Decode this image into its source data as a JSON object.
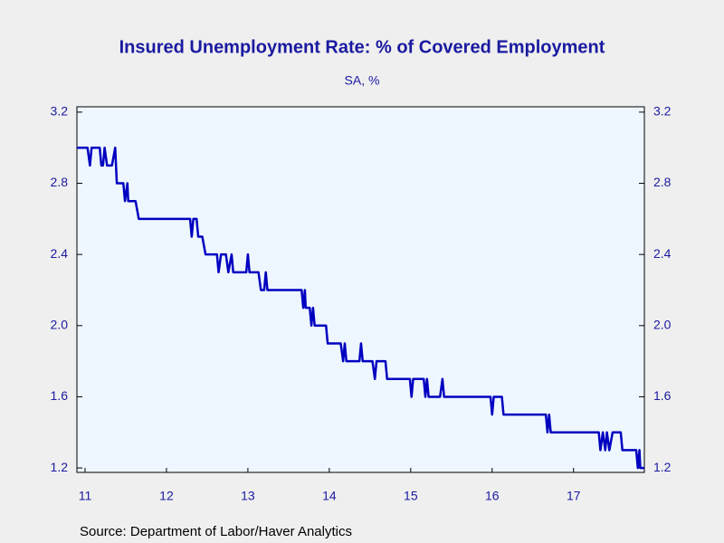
{
  "chart_data": {
    "type": "line",
    "title": "Insured Unemployment Rate: % of Covered Employment",
    "subtitle": "SA, %",
    "source": "Source:  Department of Labor/Haver Analytics",
    "x": [
      2011.4,
      2011.53,
      2011.56,
      2011.58,
      2011.68,
      2011.7,
      2011.72,
      2011.74,
      2011.77,
      2011.83,
      2011.87,
      2011.89,
      2011.97,
      2011.99,
      2012.02,
      2012.03,
      2012.12,
      2012.16,
      2012.79,
      2012.81,
      2012.83,
      2012.87,
      2012.89,
      2012.94,
      2012.98,
      2013.12,
      2013.14,
      2013.17,
      2013.23,
      2013.26,
      2013.3,
      2013.32,
      2013.48,
      2013.5,
      2013.52,
      2013.63,
      2013.66,
      2013.7,
      2013.72,
      2013.74,
      2014.16,
      2014.18,
      2014.2,
      2014.21,
      2014.26,
      2014.28,
      2014.3,
      2014.32,
      2014.46,
      2014.48,
      2014.64,
      2014.67,
      2014.69,
      2014.71,
      2014.87,
      2014.89,
      2014.91,
      2015.03,
      2015.06,
      2015.08,
      2015.19,
      2015.21,
      2015.49,
      2015.51,
      2015.53,
      2015.66,
      2015.68,
      2015.7,
      2015.72,
      2015.86,
      2015.89,
      2015.91,
      2016.48,
      2016.5,
      2016.52,
      2016.62,
      2016.64,
      2017.16,
      2017.18,
      2017.2,
      2017.22,
      2017.81,
      2017.83,
      2017.86,
      2017.89,
      2017.91,
      2017.94,
      2017.98,
      2018.08,
      2018.1,
      2018.27,
      2018.29,
      2018.31,
      2018.32,
      2018.37
    ],
    "series": [
      {
        "color": "#0000c0",
        "values": [
          3.0,
          3.0,
          2.9,
          3.0,
          3.0,
          2.9,
          2.9,
          3.0,
          2.9,
          2.9,
          3.0,
          2.8,
          2.8,
          2.7,
          2.8,
          2.7,
          2.7,
          2.6,
          2.6,
          2.5,
          2.6,
          2.6,
          2.5,
          2.5,
          2.4,
          2.4,
          2.3,
          2.4,
          2.4,
          2.3,
          2.4,
          2.3,
          2.3,
          2.4,
          2.3,
          2.3,
          2.2,
          2.2,
          2.3,
          2.2,
          2.2,
          2.1,
          2.2,
          2.1,
          2.1,
          2.0,
          2.1,
          2.0,
          2.0,
          1.9,
          1.9,
          1.8,
          1.9,
          1.8,
          1.8,
          1.9,
          1.8,
          1.8,
          1.7,
          1.8,
          1.8,
          1.7,
          1.7,
          1.6,
          1.7,
          1.7,
          1.6,
          1.7,
          1.6,
          1.6,
          1.7,
          1.6,
          1.6,
          1.5,
          1.6,
          1.6,
          1.5,
          1.5,
          1.4,
          1.5,
          1.4,
          1.4,
          1.3,
          1.4,
          1.3,
          1.4,
          1.3,
          1.4,
          1.4,
          1.3,
          1.3,
          1.2,
          1.3,
          1.2,
          1.2
        ]
      }
    ],
    "xlim": [
      2011.4,
      2018.37
    ],
    "xticks": [
      {
        "value": 2011.5,
        "label": "11"
      },
      {
        "value": 2012.5,
        "label": "12"
      },
      {
        "value": 2013.5,
        "label": "13"
      },
      {
        "value": 2014.5,
        "label": "14"
      },
      {
        "value": 2015.5,
        "label": "15"
      },
      {
        "value": 2016.5,
        "label": "16"
      },
      {
        "value": 2017.5,
        "label": "17"
      }
    ],
    "ylim": [
      1.175,
      3.23
    ],
    "yticks": [
      1.2,
      1.6,
      {
        "value": 2,
        "label": "2.0"
      },
      2.4,
      2.8,
      3.2
    ],
    "y2lim": [
      1.175,
      3.23
    ],
    "y2ticks": [
      1.2,
      1.6,
      {
        "value": 2,
        "label": "2.0"
      },
      2.4,
      2.8,
      3.2
    ]
  }
}
